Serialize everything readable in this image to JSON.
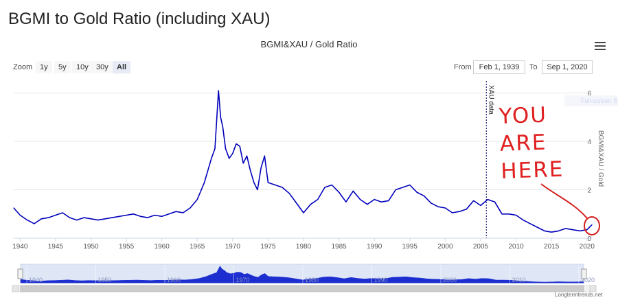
{
  "page": {
    "title": "BGMI to Gold Ratio (including XAU)"
  },
  "chart": {
    "title": "BGMI&XAU / Gold Ratio",
    "menu_icon": "hamburger-menu-icon",
    "fullscreen_label": "Full-screen S",
    "credits": "Longtermtrends.net"
  },
  "zoom": {
    "label": "Zoom",
    "buttons": [
      {
        "label": "1y",
        "active": false
      },
      {
        "label": "5y",
        "active": false
      },
      {
        "label": "10y",
        "active": false
      },
      {
        "label": "30y",
        "active": false
      },
      {
        "label": "All",
        "active": true
      }
    ]
  },
  "range": {
    "from_label": "From",
    "from_value": "Feb 1, 1939",
    "to_label": "To",
    "to_value": "Sep 1, 2020"
  },
  "annotation": {
    "lines": [
      "YOU",
      "ARE",
      "HERE"
    ],
    "color": "#e02020"
  },
  "navigator": {
    "x_ticks": [
      "1940",
      "1950",
      "1960",
      "1970",
      "1980",
      "1990",
      "2000",
      "2010",
      "2020"
    ]
  },
  "chart_data": {
    "type": "line",
    "title": "BGMI&XAU / Gold Ratio",
    "ylabel": "BGMI&XAU / Gold",
    "xlabel": "",
    "xlim": [
      1939.1,
      2020.7
    ],
    "ylim": [
      0,
      6.5
    ],
    "x_ticks": [
      1940,
      1945,
      1950,
      1955,
      1960,
      1965,
      1970,
      1975,
      1980,
      1985,
      1990,
      1995,
      2000,
      2005,
      2010,
      2015,
      2020
    ],
    "y_ticks": [
      0,
      2,
      4,
      6
    ],
    "grid": true,
    "legend": "none",
    "series_color": "#0000bb",
    "plot_line": {
      "x": 2005.8,
      "label": "XAU data"
    },
    "series": [
      {
        "x": [
          1939.1,
          1940,
          1941,
          1942,
          1943,
          1944,
          1945,
          1946,
          1947,
          1948,
          1949,
          1950,
          1951,
          1952,
          1953,
          1954,
          1955,
          1956,
          1957,
          1958,
          1959,
          1960,
          1961,
          1962,
          1963,
          1964,
          1965,
          1966,
          1967,
          1967.5,
          1968,
          1968.3,
          1968.6,
          1969,
          1969.5,
          1970,
          1970.5,
          1971,
          1971.5,
          1972,
          1972.5,
          1973,
          1973.5,
          1974,
          1974.5,
          1975,
          1976,
          1977,
          1978,
          1979,
          1980,
          1981,
          1982,
          1983,
          1984,
          1985,
          1986,
          1987,
          1988,
          1989,
          1990,
          1991,
          1992,
          1993,
          1994,
          1995,
          1996,
          1997,
          1998,
          1999,
          2000,
          2001,
          2002,
          2003,
          2004,
          2005,
          2006,
          2007,
          2008,
          2009,
          2010,
          2011,
          2012,
          2013,
          2014,
          2015,
          2016,
          2017,
          2018,
          2019,
          2020,
          2020.7
        ],
        "values": [
          1.25,
          0.95,
          0.75,
          0.6,
          0.8,
          0.85,
          0.95,
          1.05,
          0.85,
          0.75,
          0.85,
          0.8,
          0.75,
          0.8,
          0.85,
          0.9,
          0.95,
          1.0,
          0.9,
          0.85,
          0.95,
          0.9,
          1.0,
          1.1,
          1.05,
          1.25,
          1.6,
          2.3,
          3.3,
          3.7,
          6.1,
          5.0,
          4.6,
          3.7,
          3.3,
          3.5,
          3.9,
          3.8,
          3.1,
          3.4,
          2.8,
          2.3,
          2.0,
          2.9,
          3.4,
          2.3,
          2.2,
          2.1,
          1.85,
          1.45,
          1.05,
          1.4,
          1.6,
          2.1,
          2.2,
          1.9,
          1.5,
          1.95,
          1.6,
          1.4,
          1.6,
          1.5,
          1.55,
          2.0,
          2.1,
          2.2,
          1.9,
          1.75,
          1.45,
          1.3,
          1.25,
          1.05,
          1.1,
          1.2,
          1.55,
          1.35,
          1.6,
          1.5,
          1.0,
          1.0,
          0.95,
          0.75,
          0.6,
          0.45,
          0.3,
          0.25,
          0.3,
          0.4,
          0.35,
          0.3,
          0.35,
          0.55
        ]
      }
    ]
  }
}
